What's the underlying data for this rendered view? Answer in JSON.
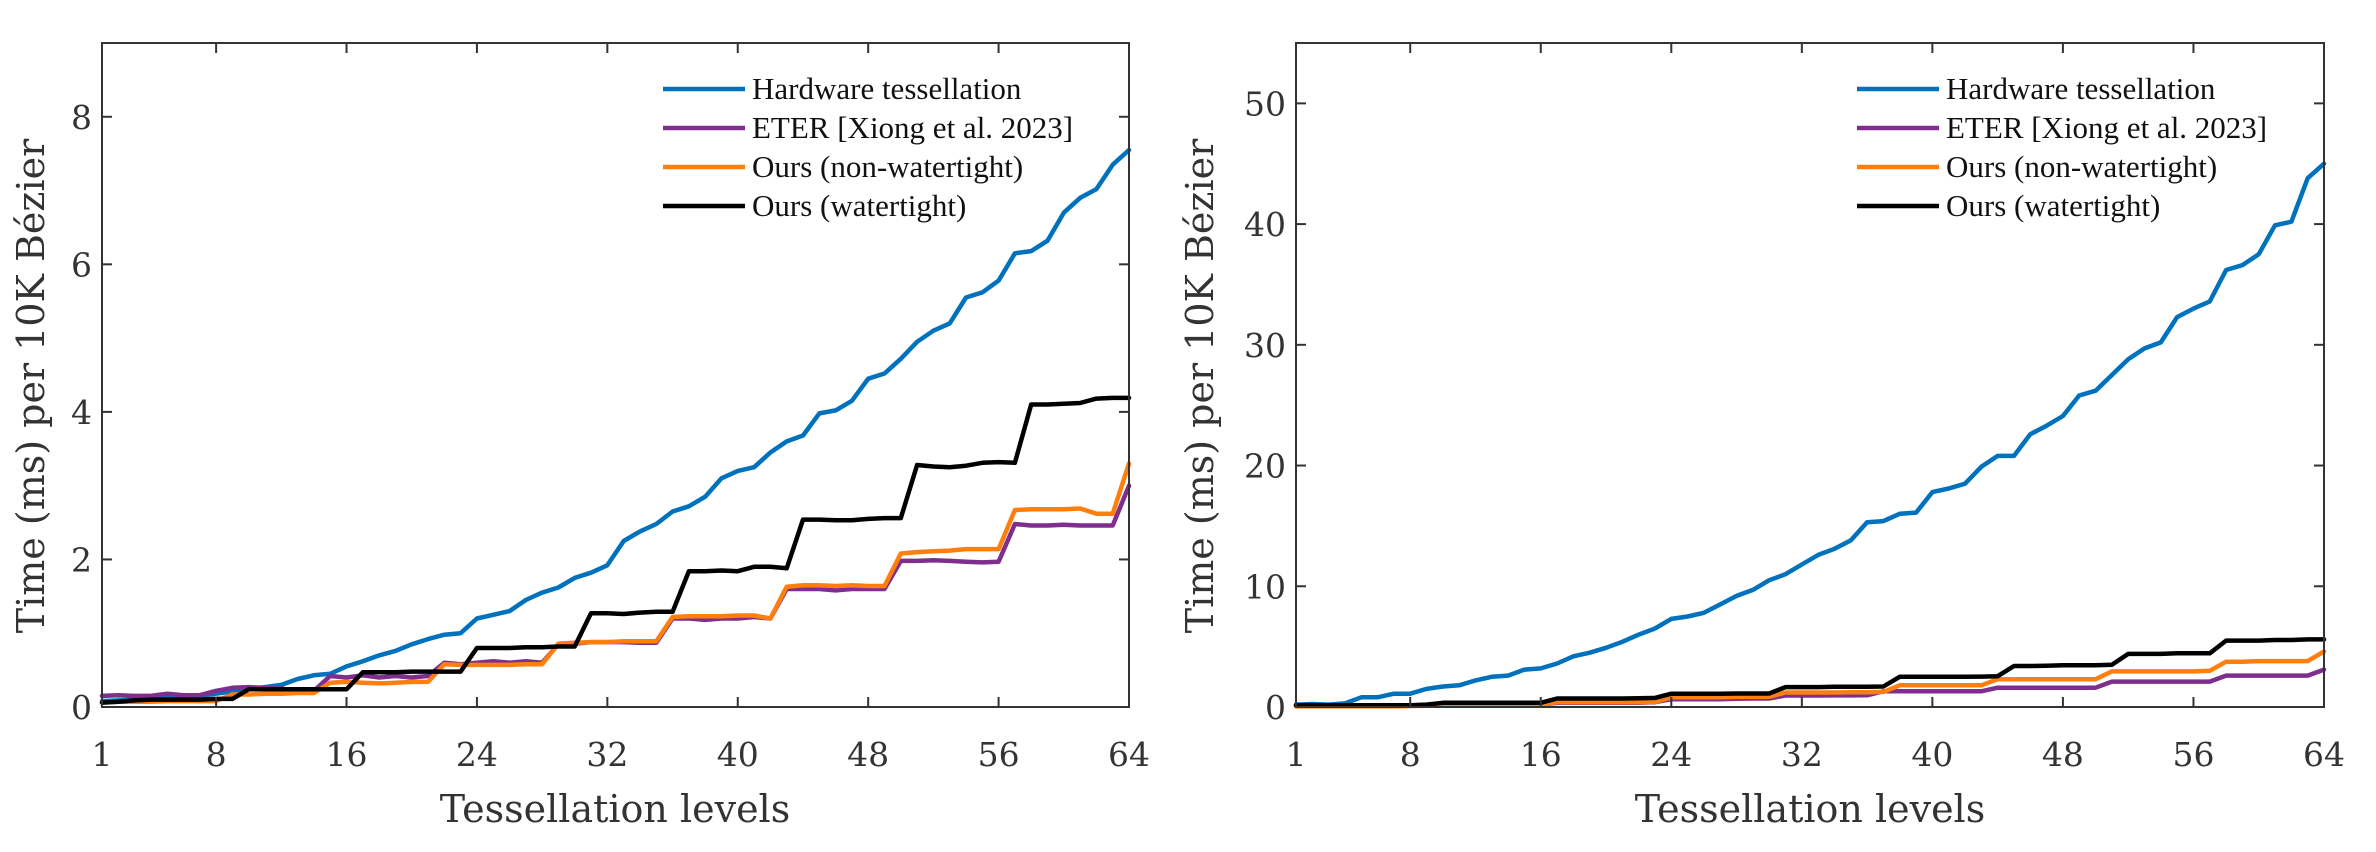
{
  "chart_data": [
    {
      "type": "line",
      "title": "",
      "xlabel": "Tessellation levels",
      "ylabel": "Time (ms) per 10K Bézier",
      "xlim": [
        1,
        64
      ],
      "ylim": [
        0,
        9
      ],
      "xticks": [
        1,
        8,
        16,
        24,
        32,
        40,
        48,
        56,
        64
      ],
      "yticks": [
        0,
        2,
        4,
        6,
        8
      ],
      "grid": false,
      "legend_position": "top-right",
      "series": [
        {
          "name": "Hardware tessellation",
          "color": "#0072BD",
          "values": [
            0.08,
            0.09,
            0.1,
            0.11,
            0.12,
            0.13,
            0.15,
            0.18,
            0.21,
            0.24,
            0.27,
            0.3,
            0.38,
            0.43,
            0.45,
            0.55,
            0.62,
            0.7,
            0.76,
            0.85,
            0.92,
            0.98,
            1.0,
            1.2,
            1.25,
            1.3,
            1.45,
            1.55,
            1.62,
            1.75,
            1.82,
            1.92,
            2.25,
            2.38,
            2.48,
            2.65,
            2.72,
            2.85,
            3.1,
            3.2,
            3.25,
            3.45,
            3.6,
            3.68,
            3.98,
            4.02,
            4.15,
            4.45,
            4.52,
            4.72,
            4.95,
            5.1,
            5.2,
            5.55,
            5.62,
            5.78,
            6.15,
            6.18,
            6.32,
            6.7,
            6.9,
            7.02,
            7.35,
            7.55
          ]
        },
        {
          "name": "ETER [Xiong et al. 2023]",
          "color": "#7E2F8E",
          "values": [
            0.15,
            0.16,
            0.15,
            0.15,
            0.18,
            0.16,
            0.16,
            0.22,
            0.26,
            0.27,
            0.26,
            0.25,
            0.22,
            0.22,
            0.42,
            0.4,
            0.43,
            0.4,
            0.42,
            0.4,
            0.42,
            0.6,
            0.58,
            0.6,
            0.62,
            0.6,
            0.62,
            0.6,
            0.85,
            0.86,
            0.88,
            0.88,
            0.88,
            0.87,
            0.87,
            1.2,
            1.2,
            1.18,
            1.2,
            1.2,
            1.22,
            1.2,
            1.6,
            1.6,
            1.6,
            1.58,
            1.6,
            1.6,
            1.6,
            1.98,
            1.98,
            1.99,
            1.98,
            1.97,
            1.96,
            1.97,
            2.48,
            2.46,
            2.46,
            2.47,
            2.46,
            2.46,
            2.46,
            3.0
          ]
        },
        {
          "name": "Ours (non-watertight)",
          "color": "#FF7F0E",
          "values": [
            0.06,
            0.07,
            0.07,
            0.07,
            0.08,
            0.08,
            0.08,
            0.08,
            0.17,
            0.17,
            0.18,
            0.18,
            0.19,
            0.19,
            0.33,
            0.34,
            0.33,
            0.32,
            0.33,
            0.34,
            0.34,
            0.58,
            0.57,
            0.57,
            0.57,
            0.57,
            0.58,
            0.58,
            0.86,
            0.87,
            0.88,
            0.88,
            0.89,
            0.89,
            0.89,
            1.22,
            1.23,
            1.23,
            1.23,
            1.24,
            1.24,
            1.2,
            1.63,
            1.65,
            1.65,
            1.64,
            1.65,
            1.64,
            1.64,
            2.08,
            2.1,
            2.11,
            2.12,
            2.14,
            2.14,
            2.14,
            2.67,
            2.68,
            2.68,
            2.68,
            2.69,
            2.62,
            2.62,
            3.3
          ]
        },
        {
          "name": "Ours (watertight)",
          "color": "#000000",
          "values": [
            0.06,
            0.07,
            0.09,
            0.1,
            0.1,
            0.1,
            0.1,
            0.11,
            0.11,
            0.24,
            0.24,
            0.24,
            0.24,
            0.24,
            0.24,
            0.24,
            0.47,
            0.47,
            0.47,
            0.48,
            0.48,
            0.48,
            0.48,
            0.8,
            0.8,
            0.8,
            0.81,
            0.81,
            0.82,
            0.82,
            1.27,
            1.27,
            1.26,
            1.28,
            1.29,
            1.29,
            1.84,
            1.84,
            1.85,
            1.84,
            1.9,
            1.9,
            1.88,
            2.54,
            2.54,
            2.53,
            2.53,
            2.55,
            2.56,
            2.56,
            3.28,
            3.26,
            3.25,
            3.27,
            3.31,
            3.32,
            3.31,
            4.1,
            4.1,
            4.11,
            4.12,
            4.18,
            4.19,
            4.19
          ]
        }
      ]
    },
    {
      "type": "line",
      "title": "",
      "xlabel": "Tessellation levels",
      "ylabel": "Time (ms) per 10K Bézier",
      "xlim": [
        1,
        64
      ],
      "ylim": [
        0,
        55
      ],
      "xticks": [
        1,
        8,
        16,
        24,
        32,
        40,
        48,
        56,
        64
      ],
      "yticks": [
        0,
        10,
        20,
        30,
        40,
        50
      ],
      "grid": false,
      "legend_position": "top-right",
      "series": [
        {
          "name": "Hardware tessellation",
          "color": "#0072BD",
          "values": [
            0.2,
            0.25,
            0.2,
            0.3,
            0.8,
            0.8,
            1.1,
            1.1,
            1.5,
            1.7,
            1.8,
            2.2,
            2.5,
            2.6,
            3.1,
            3.2,
            3.6,
            4.2,
            4.5,
            4.9,
            5.4,
            6.0,
            6.5,
            7.3,
            7.5,
            7.8,
            8.5,
            9.2,
            9.7,
            10.5,
            11.0,
            11.8,
            12.6,
            13.1,
            13.8,
            15.3,
            15.4,
            16.0,
            16.1,
            17.8,
            18.1,
            18.5,
            19.9,
            20.8,
            20.8,
            22.6,
            23.3,
            24.1,
            25.8,
            26.2,
            27.5,
            28.8,
            29.7,
            30.2,
            32.3,
            33.0,
            33.6,
            36.2,
            36.6,
            37.5,
            39.9,
            40.2,
            43.8,
            45.0
          ]
        },
        {
          "name": "ETER [Xiong et al. 2023]",
          "color": "#7E2F8E",
          "values": [
            0.1,
            0.1,
            0.1,
            0.1,
            0.1,
            0.1,
            0.1,
            0.1,
            0.15,
            0.2,
            0.2,
            0.2,
            0.2,
            0.2,
            0.2,
            0.2,
            0.35,
            0.35,
            0.35,
            0.35,
            0.35,
            0.35,
            0.4,
            0.65,
            0.65,
            0.65,
            0.65,
            0.68,
            0.7,
            0.7,
            0.95,
            0.95,
            0.95,
            0.96,
            0.96,
            0.97,
            1.3,
            1.3,
            1.3,
            1.3,
            1.3,
            1.3,
            1.3,
            1.6,
            1.6,
            1.6,
            1.6,
            1.6,
            1.6,
            1.6,
            2.1,
            2.1,
            2.1,
            2.1,
            2.1,
            2.1,
            2.1,
            2.6,
            2.6,
            2.6,
            2.6,
            2.6,
            2.6,
            3.1
          ]
        },
        {
          "name": "Ours (non-watertight)",
          "color": "#FF7F0E",
          "values": [
            0.05,
            0.05,
            0.05,
            0.05,
            0.05,
            0.05,
            0.05,
            0.08,
            0.1,
            0.15,
            0.15,
            0.15,
            0.15,
            0.15,
            0.15,
            0.2,
            0.4,
            0.4,
            0.4,
            0.4,
            0.4,
            0.4,
            0.42,
            0.8,
            0.8,
            0.8,
            0.8,
            0.85,
            0.85,
            0.85,
            1.2,
            1.2,
            1.2,
            1.2,
            1.22,
            1.22,
            1.25,
            1.8,
            1.8,
            1.8,
            1.8,
            1.8,
            1.8,
            2.3,
            2.3,
            2.3,
            2.3,
            2.3,
            2.3,
            2.3,
            2.95,
            2.95,
            2.95,
            2.95,
            2.95,
            2.95,
            3.0,
            3.75,
            3.75,
            3.8,
            3.8,
            3.8,
            3.8,
            4.6
          ]
        },
        {
          "name": "Ours (watertight)",
          "color": "#000000",
          "values": [
            0.15,
            0.15,
            0.15,
            0.15,
            0.15,
            0.15,
            0.15,
            0.15,
            0.2,
            0.35,
            0.35,
            0.35,
            0.35,
            0.35,
            0.35,
            0.35,
            0.7,
            0.7,
            0.7,
            0.7,
            0.7,
            0.72,
            0.75,
            1.1,
            1.1,
            1.1,
            1.1,
            1.12,
            1.12,
            1.12,
            1.65,
            1.65,
            1.65,
            1.68,
            1.68,
            1.68,
            1.7,
            2.5,
            2.5,
            2.5,
            2.5,
            2.5,
            2.52,
            2.55,
            3.4,
            3.4,
            3.42,
            3.45,
            3.45,
            3.45,
            3.5,
            4.4,
            4.4,
            4.4,
            4.45,
            4.45,
            4.45,
            5.5,
            5.5,
            5.5,
            5.55,
            5.55,
            5.6,
            5.6
          ]
        }
      ]
    }
  ]
}
